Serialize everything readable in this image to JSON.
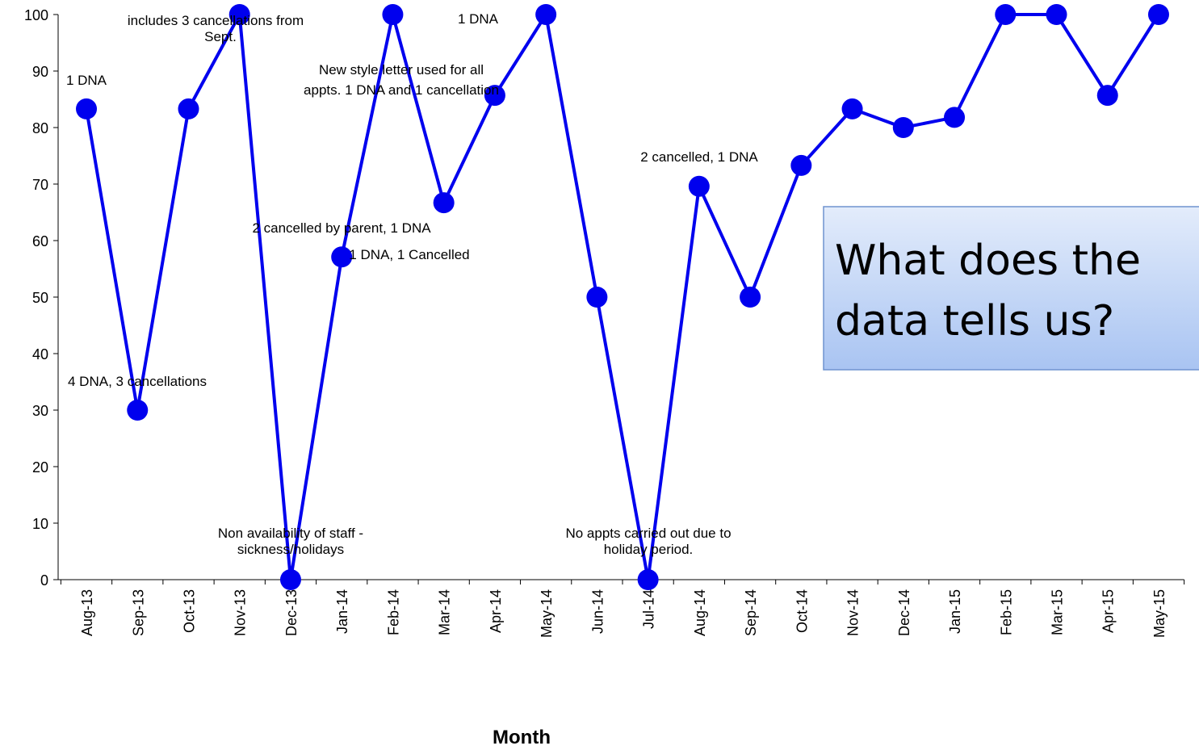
{
  "chart_data": {
    "type": "line",
    "x_label": "Month",
    "categories": [
      "Aug-13",
      "Sep-13",
      "Oct-13",
      "Nov-13",
      "Dec-13",
      "Jan-14",
      "Feb-14",
      "Mar-14",
      "Apr-14",
      "May-14",
      "Jun-14",
      "Jul-14",
      "Aug-14",
      "Sep-14",
      "Oct-14",
      "Nov-14",
      "Dec-14",
      "Jan-15",
      "Feb-15",
      "Mar-15",
      "Apr-15",
      "May-15"
    ],
    "series": [
      {
        "color": "#0000ee",
        "values": [
          83.3,
          30,
          83.3,
          100,
          0,
          57.1,
          100,
          66.7,
          85.7,
          100,
          50,
          0,
          69.6,
          50,
          73.3,
          83.3,
          80,
          81.8,
          100,
          100,
          85.7,
          100
        ]
      }
    ],
    "ylim": [
      0,
      100
    ],
    "yticks": [
      0,
      10,
      20,
      30,
      40,
      50,
      60,
      70,
      80,
      90,
      100
    ],
    "grid": false,
    "annotations": [
      [
        "1 DNA"
      ],
      [
        "includes 3 cancellations from",
        "Sept."
      ],
      [
        "1 DNA"
      ],
      [
        "New style letter used for all",
        "appts. 1 DNA and 1 cancellation"
      ],
      [
        "2 cancelled, 1 DNA"
      ],
      [
        "2 cancelled by parent, 1 DNA"
      ],
      [
        "1 DNA, 1 Cancelled"
      ],
      [
        "4 DNA, 3 cancellations"
      ],
      [
        "Non availability of staff -",
        "sickness/holidays"
      ],
      [
        "No appts carried out due to",
        "holiday period."
      ]
    ],
    "callout": [
      "What does the",
      "data tells us?"
    ]
  }
}
